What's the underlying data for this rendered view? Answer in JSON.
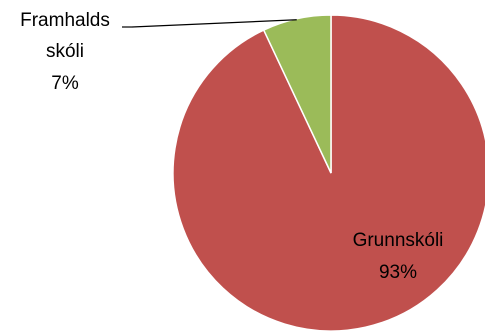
{
  "chart_data": {
    "type": "pie",
    "title": "",
    "slices": [
      {
        "label_lines": [
          "Grunnskóli"
        ],
        "value": 93,
        "value_label": "93%",
        "color": "#c0504d"
      },
      {
        "label_lines": [
          "Framhalds",
          "skóli"
        ],
        "value": 7,
        "value_label": "7%",
        "color": "#9bbb59"
      }
    ],
    "legend": "none",
    "slice_border_color": "#ffffff"
  }
}
